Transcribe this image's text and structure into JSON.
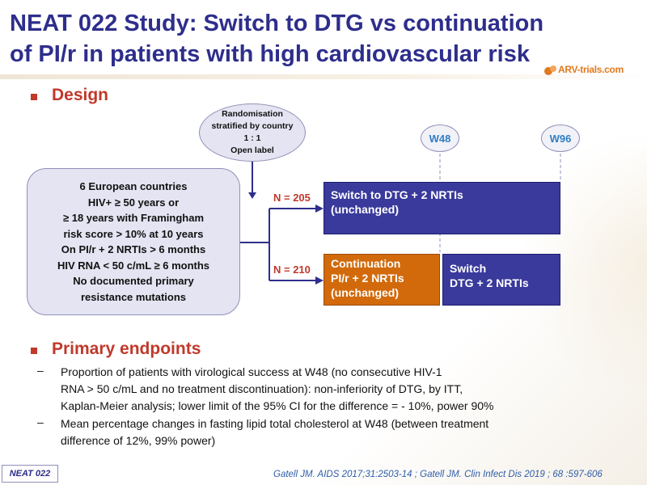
{
  "title": {
    "line1": "NEAT 022 Study: Switch to DTG vs continuation",
    "line2": "of PI/r in patients with high cardiovascular risk"
  },
  "logo": {
    "text": "ARV-trials.com",
    "mark_icon": "arv-trials-logo-icon"
  },
  "sections": {
    "design": "Design",
    "primary_endpoints": "Primary endpoints"
  },
  "randomisation": {
    "line1": "Randomisation",
    "line2": "stratified by country",
    "line3": "1 : 1",
    "line4": "Open label"
  },
  "criteria": [
    "6 European countries",
    "HIV+ ≥ 50 years or",
    "≥ 18 years with Framingham",
    "risk score > 10% at 10 years",
    "On PI/r + 2 NRTIs > 6 months",
    "HIV RNA < 50 c/mL ≥ 6 months",
    "No documented primary",
    "resistance mutations"
  ],
  "timepoints": {
    "w48": "W48",
    "w96": "W96"
  },
  "arms": {
    "switch": {
      "n_label": "N = 205",
      "line1": "Switch to DTG + 2 NRTIs",
      "line2": "(unchanged)"
    },
    "continuation": {
      "n_label": "N = 210",
      "line1": "Continuation",
      "line2": "PI/r + 2 NRTIs",
      "line3": "(unchanged)",
      "later_line1": "Switch",
      "later_line2": "DTG + 2 NRTIs"
    }
  },
  "endpoints": [
    {
      "line1": "Proportion of patients with virological success at W48 (no consecutive HIV-1",
      "line2": "RNA > 50 c/mL and no treatment discontinuation): non-inferiority of DTG, by ITT,",
      "line3": "Kaplan-Meier analysis; lower limit of the 95% CI for the difference = - 10%, power 90%"
    },
    {
      "line1": "Mean percentage changes in fasting lipid total cholesterol at W48 (between treatment",
      "line2": "difference of 12%, 99% power)"
    }
  ],
  "dash_symbol": "–",
  "footer": {
    "tag": "NEAT 022",
    "citation": "Gatell JM. AIDS 2017;31:2503-14 ; Gatell JM. Clin Infect Dis 2019 ; 68 :597-606"
  },
  "colors": {
    "title": "#2e2e8c",
    "section": "#c0392b",
    "arm_blue": "#3a3a9c",
    "arm_orange": "#d26a0b",
    "shape_fill": "#e4e4f2",
    "week_text": "#2e7fc4",
    "citation": "#2e5da8"
  }
}
